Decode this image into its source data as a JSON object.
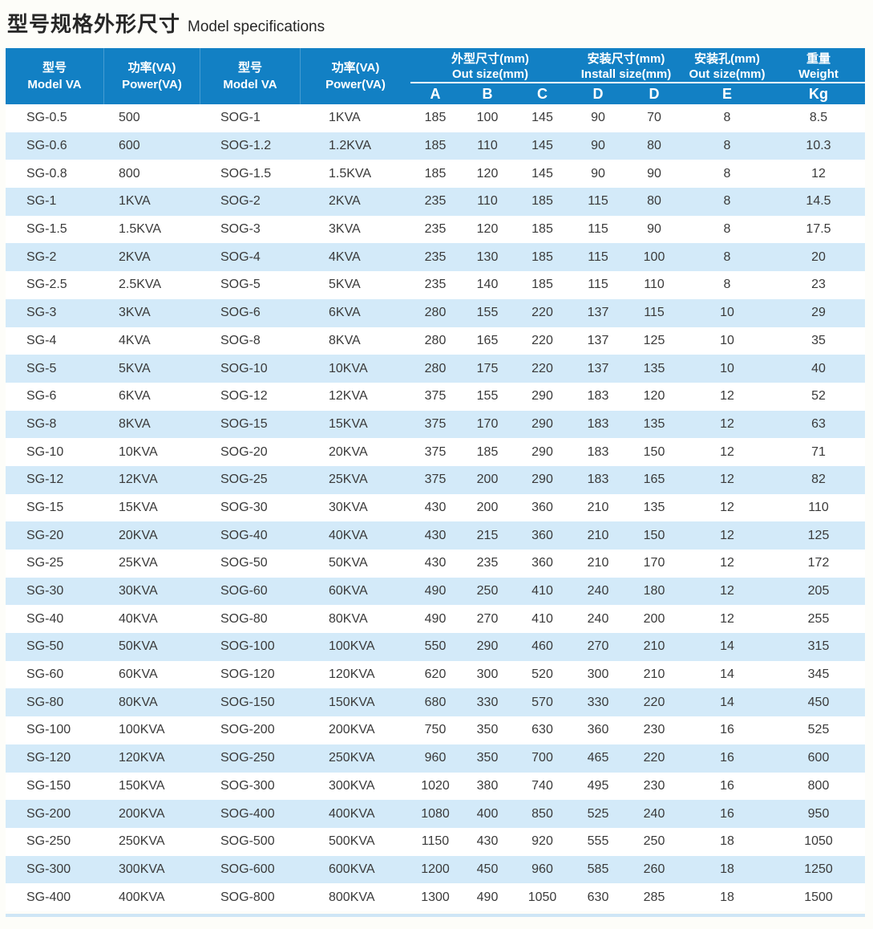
{
  "title": {
    "zh": "型号规格外形尺寸",
    "en": "Model specifications"
  },
  "colors": {
    "header_blue": "#1280c4",
    "stripe_blue": "#d3eaf9",
    "header_text": "#ffffff",
    "body_text": "#3a3a3a"
  },
  "table": {
    "header": {
      "col1": {
        "zh": "型号",
        "en": "Model VA"
      },
      "col2": {
        "zh": "功率(VA)",
        "en": "Power(VA)"
      },
      "col3": {
        "zh": "型号",
        "en": "Model VA"
      },
      "col4": {
        "zh": "功率(VA)",
        "en": "Power(VA)"
      },
      "groups": [
        {
          "zh": "外型尺寸(mm)",
          "en": "Out size(mm)"
        },
        {
          "zh": "安装尺寸(mm)",
          "en": "Install size(mm)"
        },
        {
          "zh": "安装孔(mm)",
          "en": "Out size(mm)"
        },
        {
          "zh": "重量",
          "en": "Weight"
        }
      ],
      "sub_headers": [
        "A",
        "B",
        "C",
        "D",
        "D",
        "E",
        "Kg"
      ]
    },
    "rows": [
      [
        "SG-0.5",
        "500",
        "SOG-1",
        "1KVA",
        "185",
        "100",
        "145",
        "90",
        "70",
        "8",
        "8.5"
      ],
      [
        "SG-0.6",
        "600",
        "SOG-1.2",
        "1.2KVA",
        "185",
        "110",
        "145",
        "90",
        "80",
        "8",
        "10.3"
      ],
      [
        "SG-0.8",
        "800",
        "SOG-1.5",
        "1.5KVA",
        "185",
        "120",
        "145",
        "90",
        "90",
        "8",
        "12"
      ],
      [
        "SG-1",
        "1KVA",
        "SOG-2",
        "2KVA",
        "235",
        "110",
        "185",
        "115",
        "80",
        "8",
        "14.5"
      ],
      [
        "SG-1.5",
        "1.5KVA",
        "SOG-3",
        "3KVA",
        "235",
        "120",
        "185",
        "115",
        "90",
        "8",
        "17.5"
      ],
      [
        "SG-2",
        "2KVA",
        "SOG-4",
        "4KVA",
        "235",
        "130",
        "185",
        "115",
        "100",
        "8",
        "20"
      ],
      [
        "SG-2.5",
        "2.5KVA",
        "SOG-5",
        "5KVA",
        "235",
        "140",
        "185",
        "115",
        "110",
        "8",
        "23"
      ],
      [
        "SG-3",
        "3KVA",
        "SOG-6",
        "6KVA",
        "280",
        "155",
        "220",
        "137",
        "115",
        "10",
        "29"
      ],
      [
        "SG-4",
        "4KVA",
        "SOG-8",
        "8KVA",
        "280",
        "165",
        "220",
        "137",
        "125",
        "10",
        "35"
      ],
      [
        "SG-5",
        "5KVA",
        "SOG-10",
        "10KVA",
        "280",
        "175",
        "220",
        "137",
        "135",
        "10",
        "40"
      ],
      [
        "SG-6",
        "6KVA",
        "SOG-12",
        "12KVA",
        "375",
        "155",
        "290",
        "183",
        "120",
        "12",
        "52"
      ],
      [
        "SG-8",
        "8KVA",
        "SOG-15",
        "15KVA",
        "375",
        "170",
        "290",
        "183",
        "135",
        "12",
        "63"
      ],
      [
        "SG-10",
        "10KVA",
        "SOG-20",
        "20KVA",
        "375",
        "185",
        "290",
        "183",
        "150",
        "12",
        "71"
      ],
      [
        "SG-12",
        "12KVA",
        "SOG-25",
        "25KVA",
        "375",
        "200",
        "290",
        "183",
        "165",
        "12",
        "82"
      ],
      [
        "SG-15",
        "15KVA",
        "SOG-30",
        "30KVA",
        "430",
        "200",
        "360",
        "210",
        "135",
        "12",
        "110"
      ],
      [
        "SG-20",
        "20KVA",
        "SOG-40",
        "40KVA",
        "430",
        "215",
        "360",
        "210",
        "150",
        "12",
        "125"
      ],
      [
        "SG-25",
        "25KVA",
        "SOG-50",
        "50KVA",
        "430",
        "235",
        "360",
        "210",
        "170",
        "12",
        "172"
      ],
      [
        "SG-30",
        "30KVA",
        "SOG-60",
        "60KVA",
        "490",
        "250",
        "410",
        "240",
        "180",
        "12",
        "205"
      ],
      [
        "SG-40",
        "40KVA",
        "SOG-80",
        "80KVA",
        "490",
        "270",
        "410",
        "240",
        "200",
        "12",
        "255"
      ],
      [
        "SG-50",
        "50KVA",
        "SOG-100",
        "100KVA",
        "550",
        "290",
        "460",
        "270",
        "210",
        "14",
        "315"
      ],
      [
        "SG-60",
        "60KVA",
        "SOG-120",
        "120KVA",
        "620",
        "300",
        "520",
        "300",
        "210",
        "14",
        "345"
      ],
      [
        "SG-80",
        "80KVA",
        "SOG-150",
        "150KVA",
        "680",
        "330",
        "570",
        "330",
        "220",
        "14",
        "450"
      ],
      [
        "SG-100",
        "100KVA",
        "SOG-200",
        "200KVA",
        "750",
        "350",
        "630",
        "360",
        "230",
        "16",
        "525"
      ],
      [
        "SG-120",
        "120KVA",
        "SOG-250",
        "250KVA",
        "960",
        "350",
        "700",
        "465",
        "220",
        "16",
        "600"
      ],
      [
        "SG-150",
        "150KVA",
        "SOG-300",
        "300KVA",
        "1020",
        "380",
        "740",
        "495",
        "230",
        "16",
        "800"
      ],
      [
        "SG-200",
        "200KVA",
        "SOG-400",
        "400KVA",
        "1080",
        "400",
        "850",
        "525",
        "240",
        "16",
        "950"
      ],
      [
        "SG-250",
        "250KVA",
        "SOG-500",
        "500KVA",
        "1150",
        "430",
        "920",
        "555",
        "250",
        "18",
        "1050"
      ],
      [
        "SG-300",
        "300KVA",
        "SOG-600",
        "600KVA",
        "1200",
        "450",
        "960",
        "585",
        "260",
        "18",
        "1250"
      ],
      [
        "SG-400",
        "400KVA",
        "SOG-800",
        "800KVA",
        "1300",
        "490",
        "1050",
        "630",
        "285",
        "18",
        "1500"
      ]
    ]
  }
}
